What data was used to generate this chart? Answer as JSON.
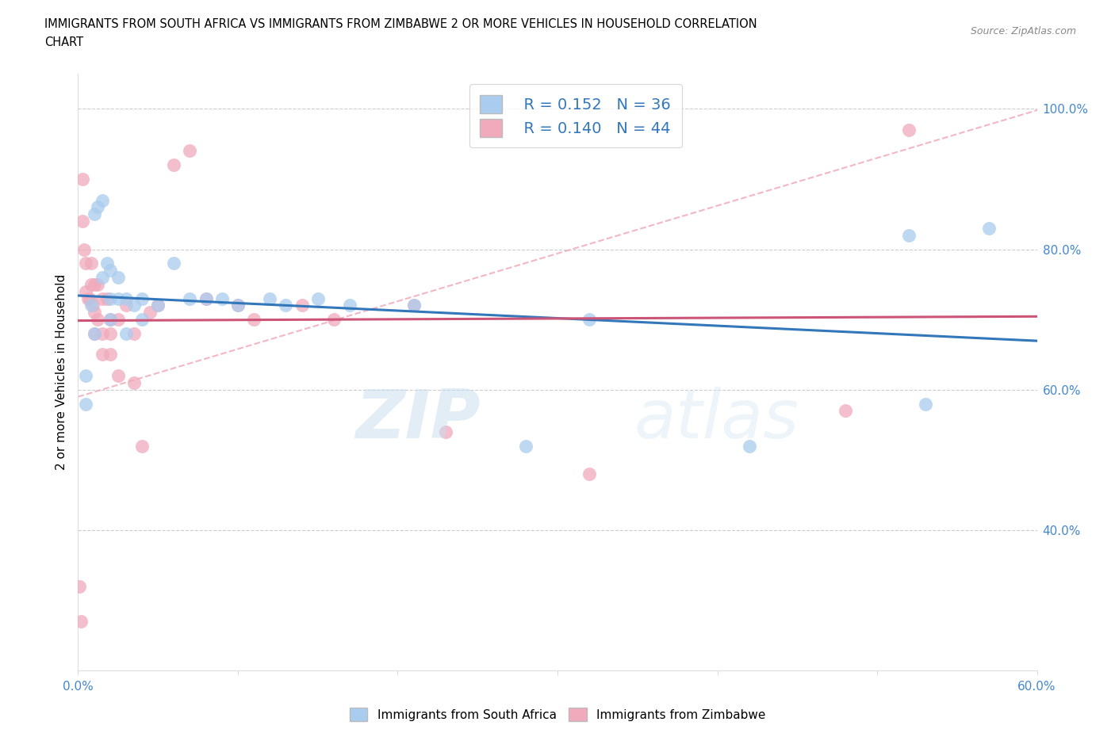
{
  "title_line1": "IMMIGRANTS FROM SOUTH AFRICA VS IMMIGRANTS FROM ZIMBABWE 2 OR MORE VEHICLES IN HOUSEHOLD CORRELATION",
  "title_line2": "CHART",
  "source": "Source: ZipAtlas.com",
  "ylabel": "2 or more Vehicles in Household",
  "xlim": [
    0.0,
    0.6
  ],
  "ylim": [
    0.2,
    1.05
  ],
  "blue_color": "#aaccee",
  "pink_color": "#f0aabb",
  "blue_line_color": "#3377bb",
  "pink_line_color": "#cc5577",
  "pink_dashed_color": "#f0aabb",
  "watermark_zip": "ZIP",
  "watermark_atlas": "atlas",
  "south_africa_x": [
    0.005,
    0.005,
    0.008,
    0.01,
    0.01,
    0.012,
    0.015,
    0.015,
    0.018,
    0.02,
    0.02,
    0.02,
    0.025,
    0.025,
    0.03,
    0.03,
    0.035,
    0.04,
    0.04,
    0.05,
    0.06,
    0.07,
    0.08,
    0.09,
    0.1,
    0.12,
    0.13,
    0.15,
    0.17,
    0.21,
    0.28,
    0.32,
    0.42,
    0.52,
    0.53,
    0.57
  ],
  "south_africa_y": [
    0.62,
    0.58,
    0.72,
    0.68,
    0.85,
    0.86,
    0.87,
    0.76,
    0.78,
    0.77,
    0.73,
    0.7,
    0.76,
    0.73,
    0.73,
    0.68,
    0.72,
    0.73,
    0.7,
    0.72,
    0.78,
    0.73,
    0.73,
    0.73,
    0.72,
    0.73,
    0.72,
    0.73,
    0.72,
    0.72,
    0.52,
    0.7,
    0.52,
    0.82,
    0.58,
    0.83
  ],
  "zimbabwe_x": [
    0.001,
    0.002,
    0.003,
    0.003,
    0.004,
    0.005,
    0.005,
    0.006,
    0.007,
    0.008,
    0.008,
    0.009,
    0.01,
    0.01,
    0.01,
    0.012,
    0.012,
    0.015,
    0.015,
    0.015,
    0.018,
    0.02,
    0.02,
    0.02,
    0.025,
    0.025,
    0.03,
    0.035,
    0.035,
    0.04,
    0.045,
    0.05,
    0.06,
    0.07,
    0.08,
    0.1,
    0.11,
    0.14,
    0.16,
    0.21,
    0.23,
    0.32,
    0.48,
    0.52
  ],
  "zimbabwe_y": [
    0.32,
    0.27,
    0.9,
    0.84,
    0.8,
    0.78,
    0.74,
    0.73,
    0.73,
    0.78,
    0.75,
    0.72,
    0.75,
    0.71,
    0.68,
    0.75,
    0.7,
    0.73,
    0.68,
    0.65,
    0.73,
    0.7,
    0.68,
    0.65,
    0.7,
    0.62,
    0.72,
    0.68,
    0.61,
    0.52,
    0.71,
    0.72,
    0.92,
    0.94,
    0.73,
    0.72,
    0.7,
    0.72,
    0.7,
    0.72,
    0.54,
    0.48,
    0.57,
    0.97
  ],
  "figsize": [
    14.06,
    9.3
  ],
  "dpi": 100
}
